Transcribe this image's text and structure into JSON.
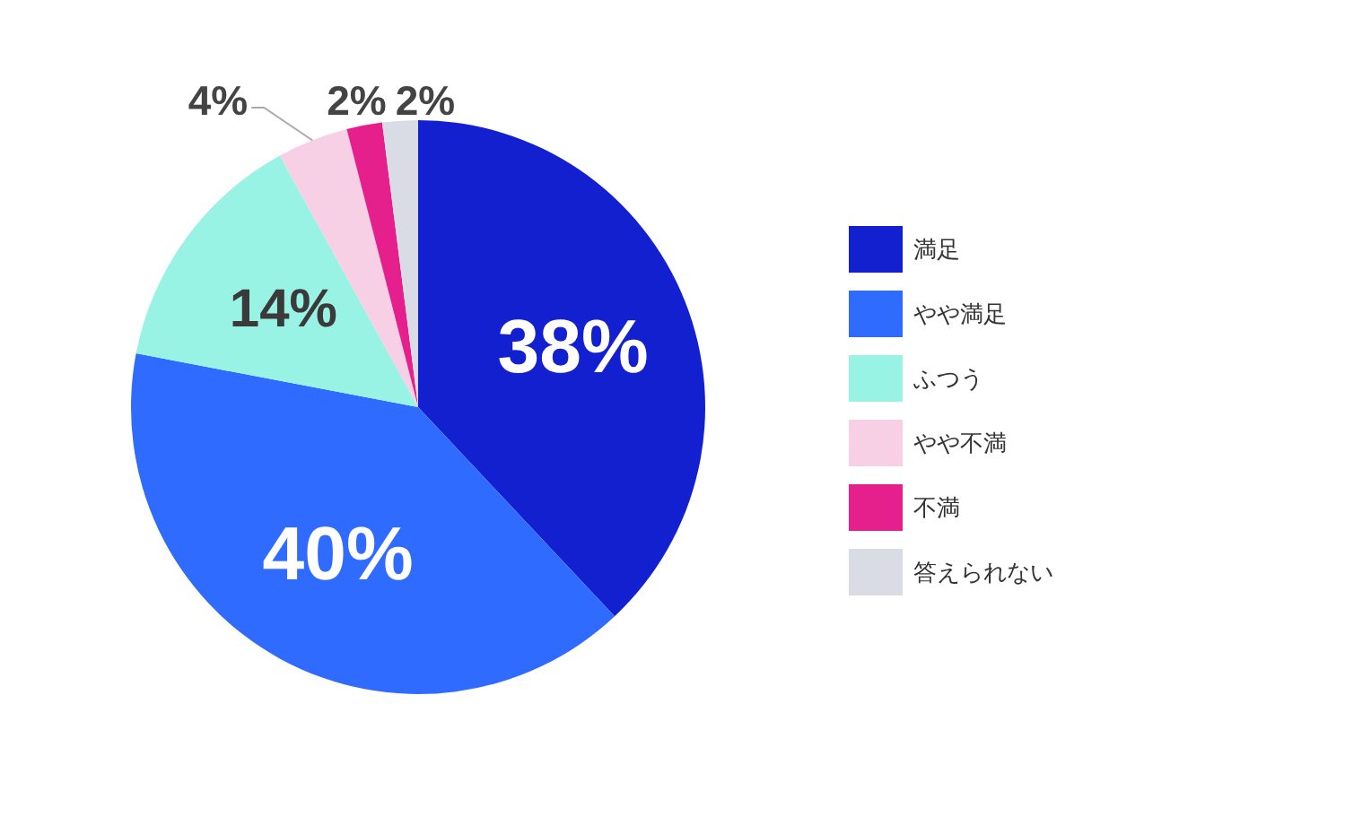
{
  "chart_data": {
    "type": "pie",
    "categories": [
      "満足",
      "やや満足",
      "ふつう",
      "やや不満",
      "不満",
      "答えられない"
    ],
    "values": [
      38,
      40,
      14,
      4,
      2,
      2
    ],
    "colors": [
      "#1220cf",
      "#2f6bff",
      "#98f3e4",
      "#f8d0e6",
      "#e51f8c",
      "#d9dce4"
    ],
    "value_labels": [
      "38%",
      "40%",
      "14%",
      "4%",
      "2%",
      "2%"
    ],
    "legend": "right"
  }
}
